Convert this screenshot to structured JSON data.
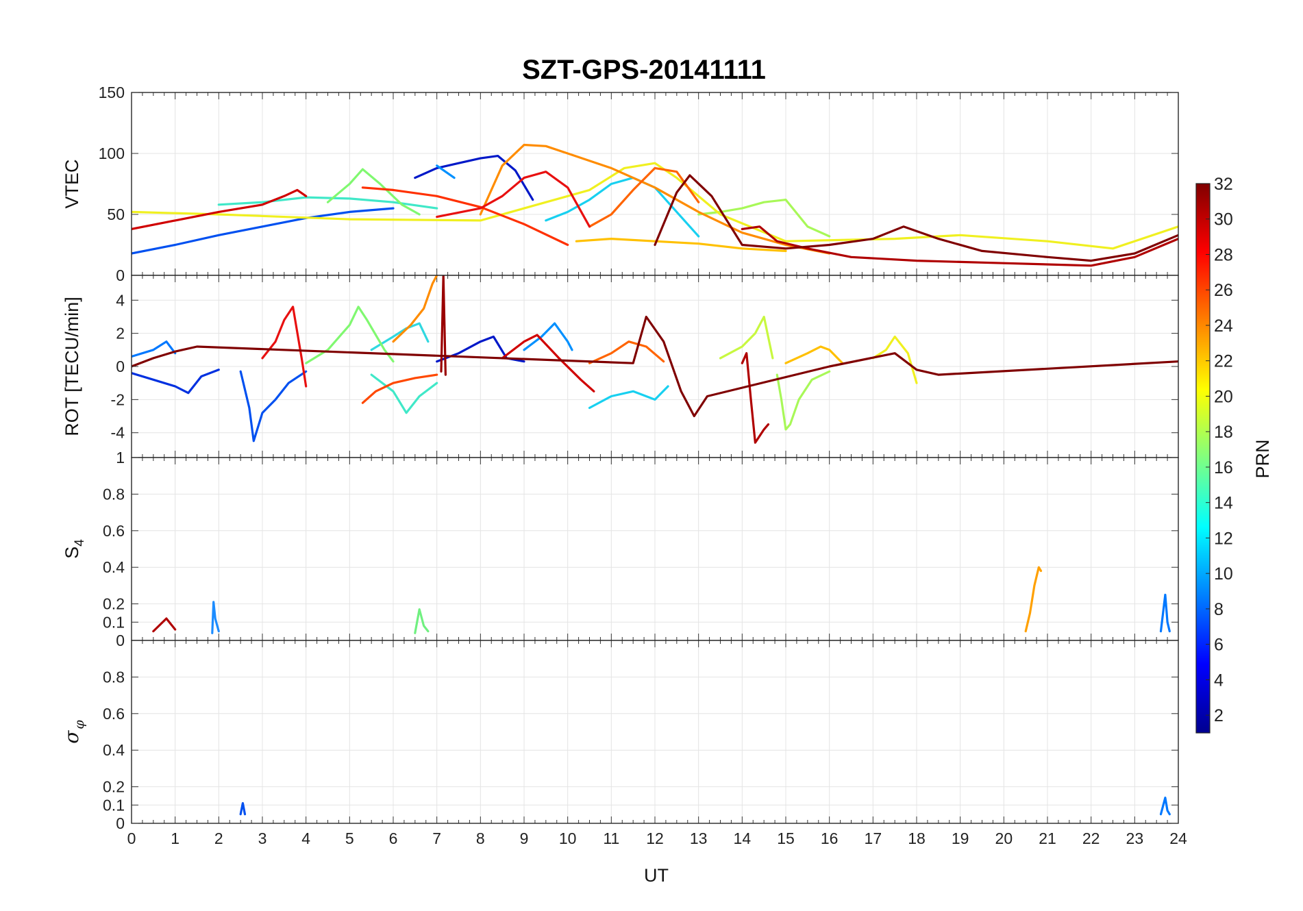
{
  "figure": {
    "title": "SZT-GPS-20141111",
    "xlabel": "UT",
    "colorbar_label": "PRN"
  },
  "chart_data": [
    {
      "type": "line",
      "panel": "vtec",
      "ylabel": "VTEC",
      "ylim": [
        0,
        150
      ],
      "yticks": [
        0,
        50,
        100,
        150
      ],
      "xlim": [
        0,
        24
      ],
      "grid": true,
      "series": [
        {
          "prn": 2,
          "color": "#0018c8",
          "x": [
            6.5,
            7.0,
            7.5,
            8.0,
            8.4,
            8.8,
            9.2
          ],
          "y": [
            80,
            88,
            92,
            96,
            98,
            86,
            62
          ]
        },
        {
          "prn": 5,
          "color": "#0050f0",
          "x": [
            0.0,
            1.0,
            2.0,
            3.0,
            4.0,
            5.0,
            6.0
          ],
          "y": [
            18,
            25,
            33,
            40,
            47,
            52,
            55
          ]
        },
        {
          "prn": 8,
          "color": "#0090ff",
          "x": [
            7.0,
            7.4
          ],
          "y": [
            90,
            80
          ]
        },
        {
          "prn": 11,
          "color": "#18d0f0",
          "x": [
            9.5,
            10.0,
            10.5,
            11.0,
            11.5,
            12.0,
            12.5,
            13.0
          ],
          "y": [
            45,
            52,
            62,
            75,
            80,
            72,
            52,
            32
          ]
        },
        {
          "prn": 12,
          "color": "#40e8c8",
          "x": [
            2.0,
            3.0,
            4.0,
            5.0,
            6.0,
            7.0
          ],
          "y": [
            58,
            60,
            64,
            63,
            60,
            55
          ]
        },
        {
          "prn": 17,
          "color": "#80f870",
          "x": [
            4.5,
            5.0,
            5.3,
            5.7,
            6.2,
            6.6
          ],
          "y": [
            60,
            75,
            87,
            75,
            58,
            50
          ]
        },
        {
          "prn": 18,
          "color": "#a8f858",
          "x": [
            13.0,
            13.5,
            14.0,
            14.5,
            15.0,
            15.5,
            16.0
          ],
          "y": [
            50,
            52,
            55,
            60,
            62,
            40,
            32
          ]
        },
        {
          "prn": 20,
          "color": "#f0f020",
          "x": [
            0.0,
            2.0,
            5.0,
            8.0,
            10.5,
            11.3,
            12.0,
            12.5,
            13.5,
            15.0,
            17.5,
            19.0,
            21.0,
            22.5,
            24.0
          ],
          "y": [
            52,
            50,
            46,
            45,
            70,
            88,
            92,
            80,
            50,
            28,
            30,
            33,
            28,
            22,
            40
          ]
        },
        {
          "prn": 22,
          "color": "#ffc000",
          "x": [
            10.2,
            11.0,
            12.0,
            13.0,
            14.0,
            15.0
          ],
          "y": [
            28,
            30,
            28,
            26,
            22,
            20
          ]
        },
        {
          "prn": 24,
          "color": "#ff8c00",
          "x": [
            8.0,
            8.5,
            9.0,
            9.5,
            10.0,
            11.0,
            12.0,
            13.0,
            14.0,
            15.0,
            16.0
          ],
          "y": [
            50,
            90,
            107,
            106,
            100,
            88,
            72,
            52,
            35,
            25,
            18
          ]
        },
        {
          "prn": 25,
          "color": "#ff6400",
          "x": [
            10.5,
            11.0,
            11.5,
            12.0,
            12.5,
            13.0
          ],
          "y": [
            40,
            50,
            70,
            88,
            85,
            60
          ]
        },
        {
          "prn": 27,
          "color": "#ff3000",
          "x": [
            5.3,
            6.0,
            7.0,
            8.0,
            9.0,
            10.0
          ],
          "y": [
            72,
            70,
            65,
            56,
            42,
            25
          ]
        },
        {
          "prn": 28,
          "color": "#e81010",
          "x": [
            7.0,
            8.0,
            8.5,
            9.0,
            9.5,
            10.0,
            10.5
          ],
          "y": [
            48,
            55,
            65,
            80,
            85,
            72,
            40
          ]
        },
        {
          "prn": 29,
          "color": "#d00000",
          "x": [
            0.0,
            1.0,
            2.0,
            3.0,
            3.5,
            3.8,
            4.0
          ],
          "y": [
            38,
            45,
            52,
            58,
            65,
            70,
            65
          ]
        },
        {
          "prn": 30,
          "color": "#b00000",
          "x": [
            14.0,
            14.4,
            14.8,
            15.5,
            16.5,
            18.0,
            20.0,
            22.0,
            23.0,
            24.0
          ],
          "y": [
            38,
            40,
            28,
            22,
            15,
            12,
            10,
            8,
            15,
            30
          ]
        },
        {
          "prn": 32,
          "color": "#800000",
          "x": [
            12.0,
            12.5,
            12.8,
            13.3,
            14.0,
            15.0,
            16.0,
            17.0,
            17.7,
            18.5,
            19.5,
            21.0,
            22.0,
            23.0,
            24.0
          ],
          "y": [
            25,
            68,
            82,
            65,
            25,
            22,
            25,
            30,
            40,
            30,
            20,
            15,
            12,
            18,
            33
          ]
        }
      ]
    },
    {
      "type": "line",
      "panel": "rot",
      "ylabel": "ROT [TECU/min]",
      "ylim": [
        -5.5,
        5.5
      ],
      "yticks": [
        -4,
        -2,
        0,
        2,
        4
      ],
      "xlim": [
        0,
        24
      ],
      "grid": true,
      "series": [
        {
          "prn": 2,
          "color": "#0018c8",
          "x": [
            7.0,
            7.5,
            8.0,
            8.3,
            8.6,
            9.0
          ],
          "y": [
            0.3,
            0.8,
            1.5,
            1.8,
            0.5,
            0.3
          ]
        },
        {
          "prn": 4,
          "color": "#0030e0",
          "x": [
            0.0,
            0.5,
            1.0,
            1.3,
            1.6,
            2.0
          ],
          "y": [
            -0.4,
            -0.8,
            -1.2,
            -1.6,
            -0.6,
            -0.2
          ]
        },
        {
          "prn": 6,
          "color": "#0050f0",
          "x": [
            2.5,
            2.7,
            2.8,
            3.0,
            3.3,
            3.6,
            4.0
          ],
          "y": [
            -0.3,
            -2.5,
            -4.5,
            -2.8,
            -2.0,
            -1.0,
            -0.3
          ]
        },
        {
          "prn": 8,
          "color": "#0078ff",
          "x": [
            0.0,
            0.5,
            0.8,
            1.0
          ],
          "y": [
            0.6,
            1.0,
            1.5,
            0.8
          ]
        },
        {
          "prn": 9,
          "color": "#0090ff",
          "x": [
            9.0,
            9.4,
            9.7,
            10.0,
            10.1
          ],
          "y": [
            1.0,
            1.8,
            2.6,
            1.5,
            1.0
          ]
        },
        {
          "prn": 11,
          "color": "#18d0f0",
          "x": [
            10.5,
            11.0,
            11.5,
            12.0,
            12.3
          ],
          "y": [
            -2.5,
            -1.8,
            -1.5,
            -2.0,
            -1.2
          ]
        },
        {
          "prn": 12,
          "color": "#40e8c8",
          "x": [
            5.5,
            6.0,
            6.3,
            6.6,
            7.0
          ],
          "y": [
            -0.5,
            -1.5,
            -2.8,
            -1.8,
            -1.0
          ]
        },
        {
          "prn": 13,
          "color": "#30d8e0",
          "x": [
            5.5,
            6.0,
            6.3,
            6.6,
            6.8
          ],
          "y": [
            1.0,
            1.8,
            2.3,
            2.6,
            1.5
          ]
        },
        {
          "prn": 17,
          "color": "#80f870",
          "x": [
            4.0,
            4.5,
            5.0,
            5.2,
            5.4,
            5.8,
            6.0
          ],
          "y": [
            0.2,
            1.0,
            2.5,
            3.6,
            2.8,
            1.0,
            0.3
          ]
        },
        {
          "prn": 18,
          "color": "#a8f858",
          "x": [
            14.8,
            14.9,
            15.0,
            15.1,
            15.3,
            15.6,
            16.0
          ],
          "y": [
            -0.5,
            -2.0,
            -3.8,
            -3.5,
            -2.0,
            -0.8,
            -0.3
          ]
        },
        {
          "prn": 19,
          "color": "#c8f840",
          "x": [
            13.5,
            14.0,
            14.3,
            14.5,
            14.7
          ],
          "y": [
            0.5,
            1.2,
            2.0,
            3.0,
            0.5
          ]
        },
        {
          "prn": 20,
          "color": "#f0f020",
          "x": [
            17.0,
            17.3,
            17.5,
            17.8,
            18.0
          ],
          "y": [
            0.5,
            1.0,
            1.8,
            0.8,
            -1.0
          ]
        },
        {
          "prn": 22,
          "color": "#ffc000",
          "x": [
            15.0,
            15.5,
            15.8,
            16.0,
            16.3
          ],
          "y": [
            0.2,
            0.8,
            1.2,
            1.0,
            0.2
          ]
        },
        {
          "prn": 24,
          "color": "#ff8c00",
          "x": [
            6.0,
            6.4,
            6.7,
            6.9,
            7.0
          ],
          "y": [
            1.5,
            2.5,
            3.5,
            5.0,
            5.5
          ]
        },
        {
          "prn": 25,
          "color": "#ff6400",
          "x": [
            10.5,
            11.0,
            11.4,
            11.8,
            12.2
          ],
          "y": [
            0.2,
            0.8,
            1.5,
            1.2,
            0.3
          ]
        },
        {
          "prn": 26,
          "color": "#ff4800",
          "x": [
            5.3,
            5.6,
            6.0,
            6.5,
            7.0
          ],
          "y": [
            -2.2,
            -1.5,
            -1.0,
            -0.7,
            -0.5
          ]
        },
        {
          "prn": 28,
          "color": "#e81010",
          "x": [
            3.0,
            3.3,
            3.5,
            3.7,
            3.9,
            4.0
          ],
          "y": [
            0.5,
            1.5,
            2.8,
            3.6,
            0.5,
            -1.2
          ]
        },
        {
          "prn": 29,
          "color": "#d00000",
          "x": [
            8.5,
            9.0,
            9.3,
            9.8,
            10.3,
            10.6
          ],
          "y": [
            0.5,
            1.5,
            1.9,
            0.5,
            -0.8,
            -1.5
          ]
        },
        {
          "prn": 30,
          "color": "#b00000",
          "x": [
            14.0,
            14.1,
            14.2,
            14.3,
            14.5,
            14.6
          ],
          "y": [
            0.2,
            0.8,
            -2.0,
            -4.6,
            -3.8,
            -3.5
          ]
        },
        {
          "prn": 31,
          "color": "#9a0000",
          "x": [
            7.1,
            7.15,
            7.2
          ],
          "y": [
            -0.3,
            5.5,
            -0.5
          ]
        },
        {
          "prn": 32,
          "color": "#800000",
          "x": [
            0.0,
            0.5,
            1.0,
            1.5,
            11.5,
            11.8,
            12.2,
            12.6,
            12.9,
            13.2,
            16.0,
            17.5,
            18.0,
            18.5,
            24.0
          ],
          "y": [
            0.0,
            0.5,
            0.9,
            1.2,
            0.2,
            3.0,
            1.5,
            -1.5,
            -3.0,
            -1.8,
            0.0,
            0.8,
            -0.2,
            -0.5,
            0.3
          ]
        }
      ]
    },
    {
      "type": "line",
      "panel": "s4",
      "ylabel": "S4",
      "ylim": [
        0,
        1
      ],
      "yticks": [
        0,
        0.1,
        0.2,
        0.4,
        0.6,
        0.8,
        1
      ],
      "xlim": [
        0,
        24
      ],
      "grid": true,
      "series": [
        {
          "prn": 9,
          "color": "#1c8cff",
          "x": [
            1.85,
            1.88,
            1.92,
            2.0
          ],
          "y": [
            0.04,
            0.21,
            0.12,
            0.05
          ]
        },
        {
          "prn": 16,
          "color": "#70f080",
          "x": [
            6.5,
            6.6,
            6.7,
            6.8
          ],
          "y": [
            0.04,
            0.17,
            0.08,
            0.05
          ]
        },
        {
          "prn": 23,
          "color": "#ffa000",
          "x": [
            20.5,
            20.6,
            20.7,
            20.8,
            20.85
          ],
          "y": [
            0.05,
            0.15,
            0.3,
            0.4,
            0.38
          ]
        },
        {
          "prn": 8,
          "color": "#0078ff",
          "x": [
            23.6,
            23.7,
            23.75,
            23.8
          ],
          "y": [
            0.05,
            0.25,
            0.1,
            0.05
          ]
        },
        {
          "prn": 30,
          "color": "#b00000",
          "x": [
            0.5,
            0.8,
            1.0
          ],
          "y": [
            0.05,
            0.12,
            0.06
          ]
        }
      ]
    },
    {
      "type": "line",
      "panel": "sigma_phi",
      "ylabel": "σφ",
      "ylim": [
        0,
        1
      ],
      "yticks": [
        0,
        0.1,
        0.2,
        0.4,
        0.6,
        0.8
      ],
      "xlim": [
        0,
        24
      ],
      "grid": true,
      "series": [
        {
          "prn": 8,
          "color": "#0078ff",
          "x": [
            23.6,
            23.7,
            23.75,
            23.8
          ],
          "y": [
            0.05,
            0.14,
            0.07,
            0.05
          ]
        },
        {
          "prn": 5,
          "color": "#0050f0",
          "x": [
            2.5,
            2.55,
            2.6
          ],
          "y": [
            0.05,
            0.11,
            0.05
          ]
        }
      ]
    }
  ],
  "xticks": [
    0,
    1,
    2,
    3,
    4,
    5,
    6,
    7,
    8,
    9,
    10,
    11,
    12,
    13,
    14,
    15,
    16,
    17,
    18,
    19,
    20,
    21,
    22,
    23,
    24
  ],
  "colorbar": {
    "range": [
      1,
      32
    ],
    "ticks": [
      2,
      4,
      6,
      8,
      10,
      12,
      14,
      16,
      18,
      20,
      22,
      24,
      26,
      28,
      30,
      32
    ],
    "colormap": [
      "#00008f",
      "#0000ff",
      "#0080ff",
      "#00ffff",
      "#80ff80",
      "#ffff00",
      "#ff8000",
      "#ff0000",
      "#800000"
    ]
  }
}
